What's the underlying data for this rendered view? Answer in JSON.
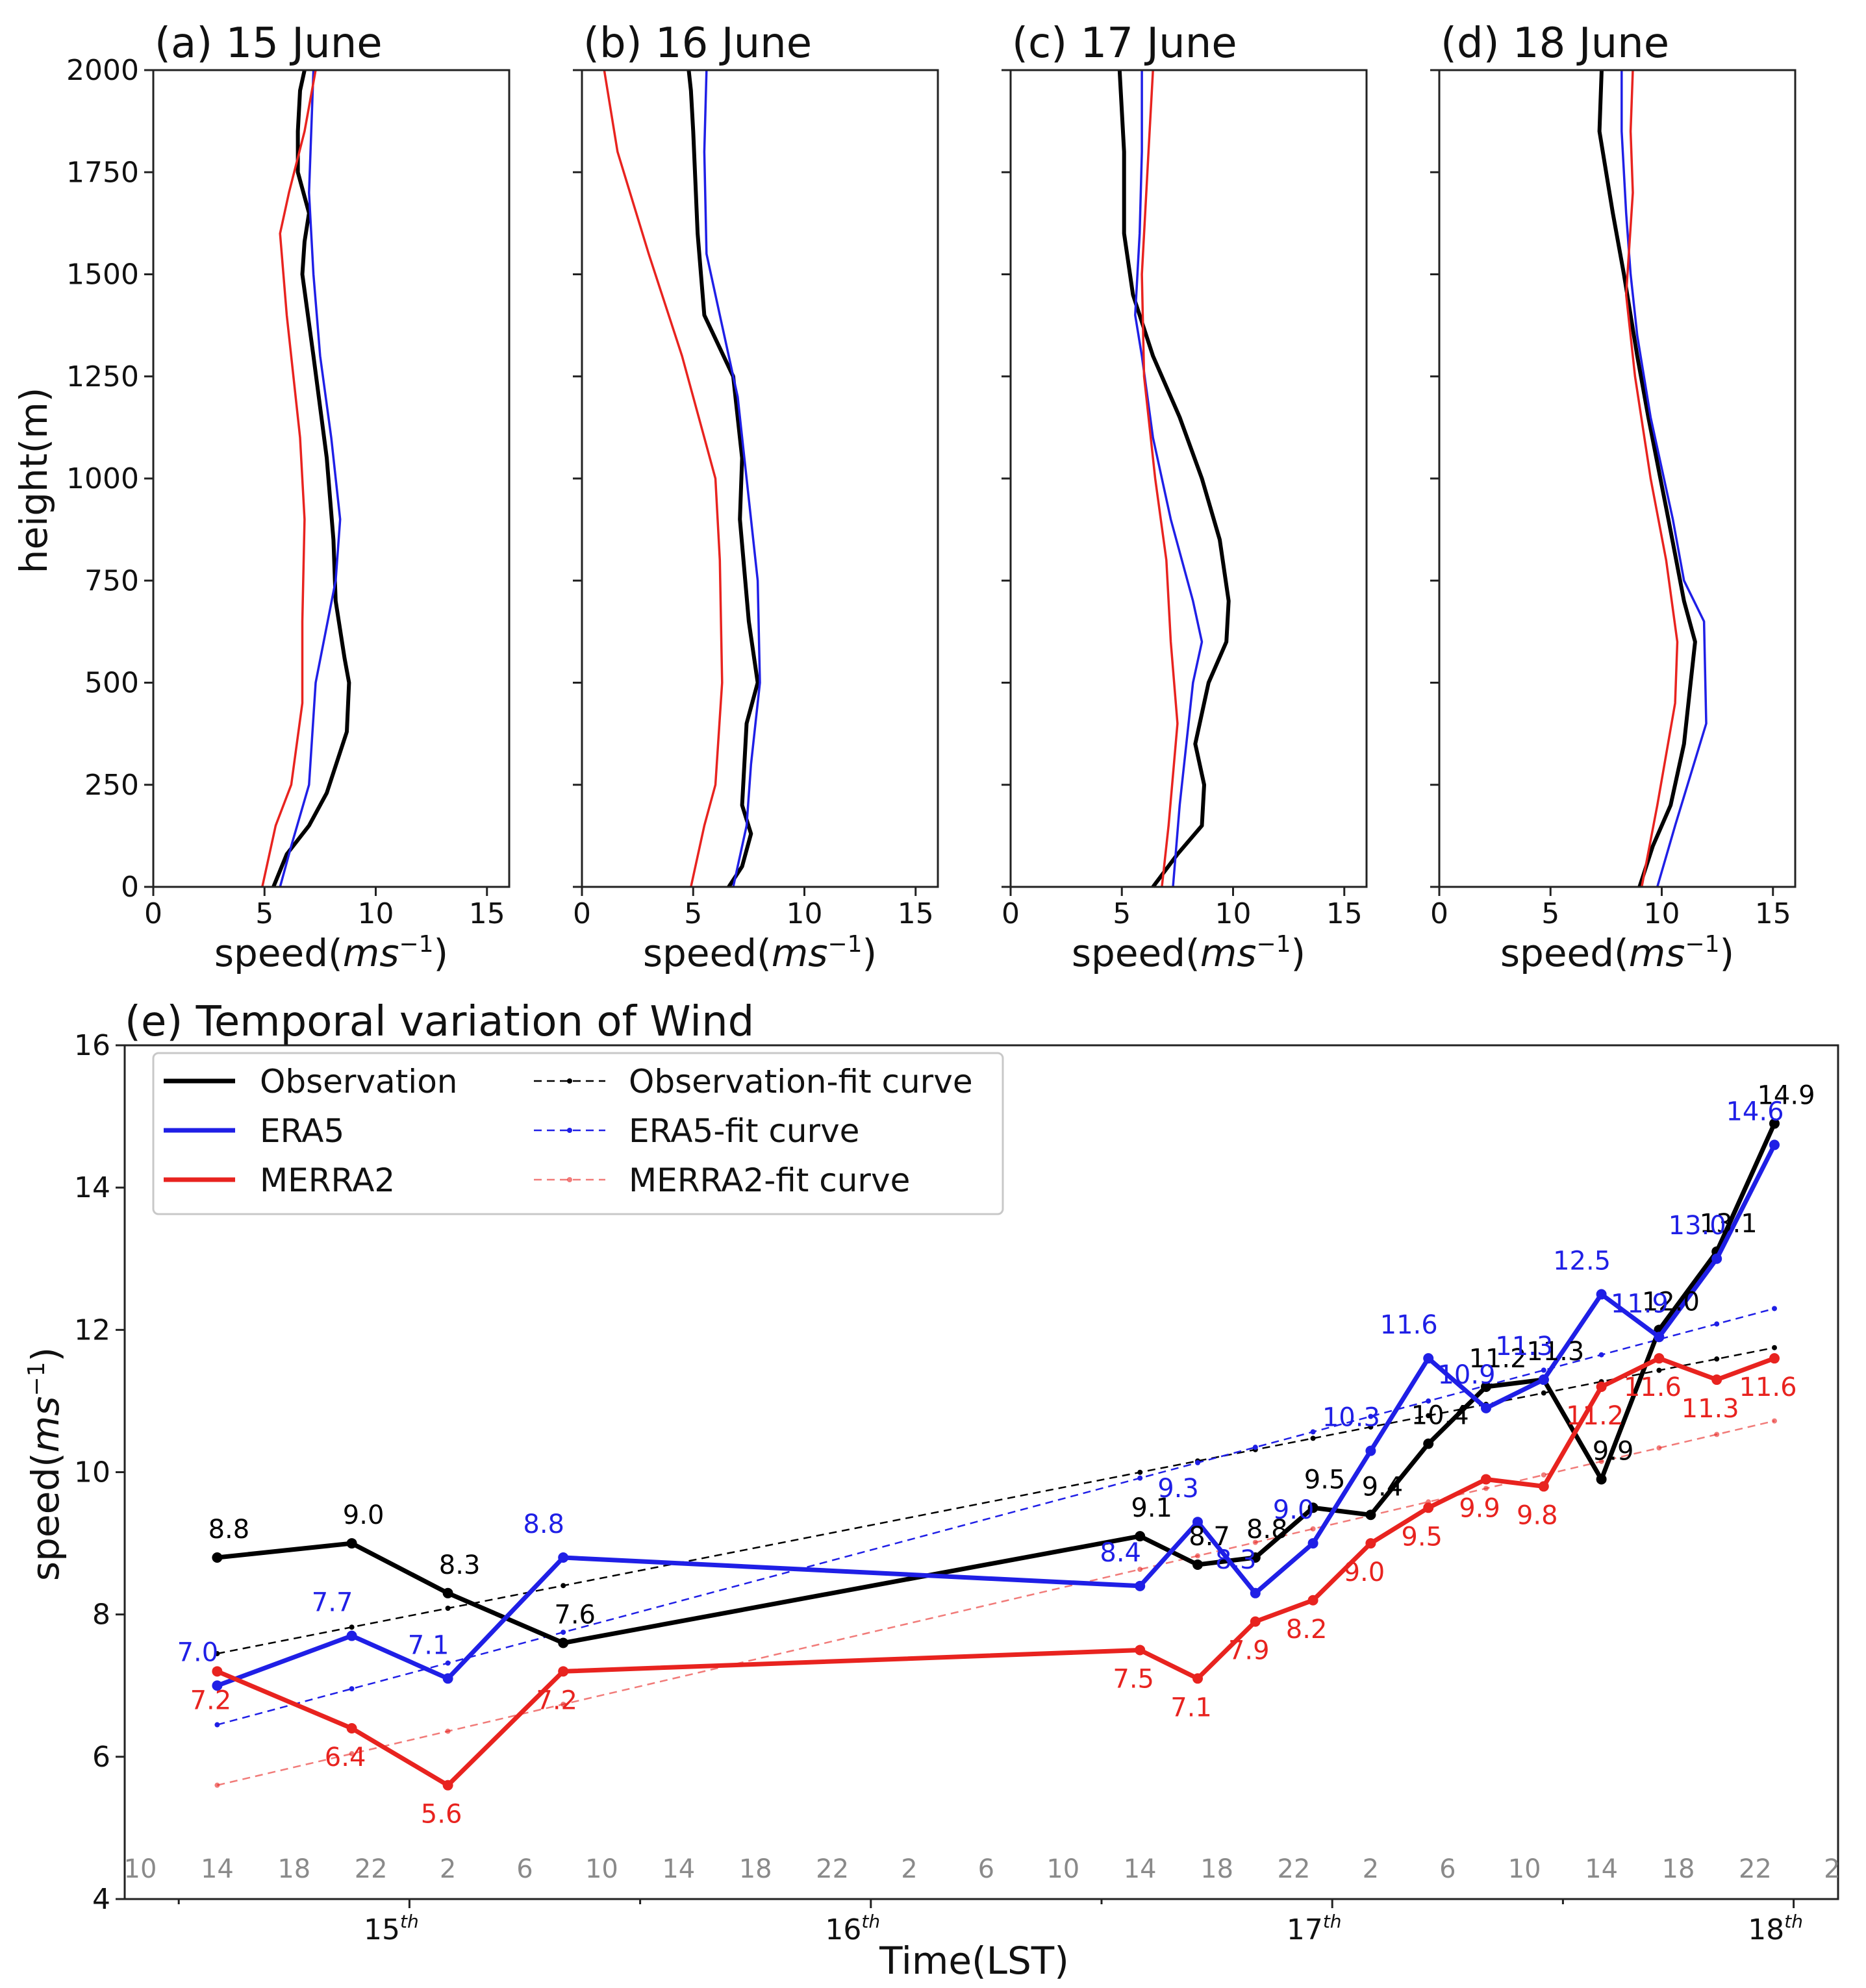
{
  "colors": {
    "observation": "#000000",
    "era5": "#1f1fe6",
    "merra2": "#e8231f"
  },
  "profile_common": {
    "ylabel": "height(m)",
    "xlabel_prefix": "speed(",
    "xlabel_unit": "ms",
    "xlabel_exp": "−1",
    "xlabel_suffix": ")",
    "xticks": [
      "0",
      "5",
      "10",
      "15"
    ],
    "yticks": [
      "0",
      "250",
      "500",
      "750",
      "1000",
      "1250",
      "1500",
      "1750",
      "2000"
    ]
  },
  "timeseries_text": {
    "title": "(e) Temporal variation of Wind",
    "ylabel_prefix": "speed(",
    "ylabel_unit": "ms",
    "ylabel_exp": "−1",
    "ylabel_suffix": ")",
    "xlabel": "Time(LST)",
    "yticks": [
      "4",
      "6",
      "8",
      "10",
      "12",
      "14",
      "16"
    ],
    "hour_ticks": [
      "10",
      "14",
      "18",
      "22",
      "2",
      "6",
      "10",
      "14",
      "18",
      "22",
      "2",
      "6",
      "10",
      "14",
      "18",
      "22",
      "2",
      "6",
      "10",
      "14",
      "18",
      "22",
      "2"
    ],
    "day_ticks": [
      {
        "base": "15",
        "sup": "th"
      },
      {
        "base": "16",
        "sup": "th"
      },
      {
        "base": "17",
        "sup": "th"
      },
      {
        "base": "18",
        "sup": "th"
      }
    ],
    "legend": {
      "observation": "Observation",
      "era5": "ERA5",
      "merra2": "MERRA2",
      "observation_fit": "Observation-fit curve",
      "era5_fit": "ERA5-fit curve",
      "merra2_fit": "MERRA2-fit curve"
    }
  },
  "chart_data": [
    {
      "type": "line",
      "title": "(a) 15 June",
      "xlabel": "speed(ms−1)",
      "ylabel": "height(m)",
      "xlim": [
        0,
        16
      ],
      "ylim": [
        0,
        2000
      ],
      "series": [
        {
          "name": "Observation",
          "points": [
            [
              5.4,
              0
            ],
            [
              6,
              80
            ],
            [
              7,
              150
            ],
            [
              7.8,
              230
            ],
            [
              8.7,
              380
            ],
            [
              8.8,
              500
            ],
            [
              8.6,
              560
            ],
            [
              8.2,
              700
            ],
            [
              8.1,
              850
            ],
            [
              7.8,
              1050
            ],
            [
              7.2,
              1300
            ],
            [
              6.7,
              1500
            ],
            [
              6.8,
              1580
            ],
            [
              7.0,
              1650
            ],
            [
              6.5,
              1750
            ],
            [
              6.5,
              1850
            ],
            [
              6.6,
              1950
            ],
            [
              6.8,
              2000
            ]
          ]
        },
        {
          "name": "ERA5",
          "points": [
            [
              5.7,
              0
            ],
            [
              6.2,
              100
            ],
            [
              7.0,
              250
            ],
            [
              7.3,
              500
            ],
            [
              8.2,
              750
            ],
            [
              8.4,
              900
            ],
            [
              8.0,
              1100
            ],
            [
              7.5,
              1300
            ],
            [
              7.2,
              1500
            ],
            [
              7.0,
              1700
            ],
            [
              7.1,
              1850
            ],
            [
              7.2,
              2000
            ]
          ]
        },
        {
          "name": "MERRA2",
          "points": [
            [
              4.9,
              0
            ],
            [
              5.5,
              150
            ],
            [
              6.2,
              250
            ],
            [
              6.7,
              450
            ],
            [
              6.7,
              650
            ],
            [
              6.8,
              900
            ],
            [
              6.6,
              1100
            ],
            [
              6.0,
              1400
            ],
            [
              5.7,
              1600
            ],
            [
              6.1,
              1700
            ],
            [
              6.8,
              1850
            ],
            [
              7.3,
              2000
            ]
          ]
        }
      ]
    },
    {
      "type": "line",
      "title": "(b) 16 June",
      "xlabel": "speed(ms−1)",
      "ylabel": "height(m)",
      "xlim": [
        0,
        16
      ],
      "ylim": [
        0,
        2000
      ],
      "series": [
        {
          "name": "Observation",
          "points": [
            [
              6.6,
              0
            ],
            [
              7.2,
              50
            ],
            [
              7.6,
              130
            ],
            [
              7.2,
              200
            ],
            [
              7.4,
              400
            ],
            [
              7.9,
              500
            ],
            [
              7.5,
              650
            ],
            [
              7.1,
              900
            ],
            [
              7.2,
              1050
            ],
            [
              6.8,
              1250
            ],
            [
              5.5,
              1400
            ],
            [
              5.2,
              1600
            ],
            [
              5.0,
              1850
            ],
            [
              4.9,
              1950
            ],
            [
              4.8,
              2000
            ]
          ]
        },
        {
          "name": "ERA5",
          "points": [
            [
              6.8,
              0
            ],
            [
              7.4,
              150
            ],
            [
              7.6,
              300
            ],
            [
              8.0,
              500
            ],
            [
              7.9,
              750
            ],
            [
              7.5,
              950
            ],
            [
              7.0,
              1200
            ],
            [
              6.2,
              1400
            ],
            [
              5.6,
              1550
            ],
            [
              5.5,
              1800
            ],
            [
              5.6,
              2000
            ]
          ]
        },
        {
          "name": "MERRA2",
          "points": [
            [
              4.9,
              0
            ],
            [
              5.5,
              150
            ],
            [
              6.0,
              250
            ],
            [
              6.3,
              500
            ],
            [
              6.2,
              800
            ],
            [
              6.0,
              1000
            ],
            [
              5.5,
              1100
            ],
            [
              4.5,
              1300
            ],
            [
              3.0,
              1550
            ],
            [
              1.6,
              1800
            ],
            [
              1.0,
              2000
            ]
          ]
        }
      ]
    },
    {
      "type": "line",
      "title": "(c) 17 June",
      "xlabel": "speed(ms−1)",
      "ylabel": "height(m)",
      "xlim": [
        0,
        16
      ],
      "ylim": [
        0,
        2000
      ],
      "series": [
        {
          "name": "Observation",
          "points": [
            [
              6.4,
              0
            ],
            [
              7.5,
              80
            ],
            [
              8.6,
              150
            ],
            [
              8.7,
              250
            ],
            [
              8.3,
              350
            ],
            [
              8.9,
              500
            ],
            [
              9.7,
              600
            ],
            [
              9.8,
              700
            ],
            [
              9.4,
              850
            ],
            [
              8.6,
              1000
            ],
            [
              7.6,
              1150
            ],
            [
              6.4,
              1300
            ],
            [
              5.5,
              1450
            ],
            [
              5.1,
              1600
            ],
            [
              5.1,
              1800
            ],
            [
              4.9,
              2000
            ]
          ]
        },
        {
          "name": "ERA5",
          "points": [
            [
              7.3,
              0
            ],
            [
              7.6,
              200
            ],
            [
              8.2,
              500
            ],
            [
              8.6,
              600
            ],
            [
              8.2,
              700
            ],
            [
              7.2,
              900
            ],
            [
              6.4,
              1100
            ],
            [
              5.9,
              1300
            ],
            [
              5.6,
              1400
            ],
            [
              5.8,
              1600
            ],
            [
              5.9,
              1800
            ],
            [
              5.9,
              2000
            ]
          ]
        },
        {
          "name": "MERRA2",
          "points": [
            [
              6.8,
              0
            ],
            [
              7.1,
              150
            ],
            [
              7.5,
              400
            ],
            [
              7.2,
              600
            ],
            [
              7.0,
              800
            ],
            [
              6.5,
              1000
            ],
            [
              6.0,
              1250
            ],
            [
              5.9,
              1500
            ],
            [
              6.2,
              1800
            ],
            [
              6.4,
              2000
            ]
          ]
        }
      ]
    },
    {
      "type": "line",
      "title": "(d) 18 June",
      "xlabel": "speed(ms−1)",
      "ylabel": "height(m)",
      "xlim": [
        0,
        16
      ],
      "ylim": [
        0,
        2000
      ],
      "series": [
        {
          "name": "Observation",
          "points": [
            [
              9.0,
              0
            ],
            [
              9.6,
              100
            ],
            [
              10.4,
              200
            ],
            [
              11.0,
              350
            ],
            [
              11.3,
              500
            ],
            [
              11.5,
              600
            ],
            [
              11.0,
              700
            ],
            [
              10.3,
              900
            ],
            [
              9.4,
              1150
            ],
            [
              8.9,
              1300
            ],
            [
              8.3,
              1500
            ],
            [
              7.8,
              1650
            ],
            [
              7.2,
              1850
            ],
            [
              7.3,
              2000
            ]
          ]
        },
        {
          "name": "ERA5",
          "points": [
            [
              9.8,
              0
            ],
            [
              10.6,
              150
            ],
            [
              12.0,
              400
            ],
            [
              11.9,
              650
            ],
            [
              11.0,
              750
            ],
            [
              10.5,
              900
            ],
            [
              9.5,
              1150
            ],
            [
              8.9,
              1350
            ],
            [
              8.6,
              1500
            ],
            [
              8.4,
              1650
            ],
            [
              8.2,
              1850
            ],
            [
              8.2,
              2000
            ]
          ]
        },
        {
          "name": "MERRA2",
          "points": [
            [
              9.1,
              0
            ],
            [
              9.8,
              200
            ],
            [
              10.6,
              450
            ],
            [
              10.7,
              600
            ],
            [
              10.2,
              800
            ],
            [
              9.5,
              1000
            ],
            [
              8.8,
              1250
            ],
            [
              8.4,
              1450
            ],
            [
              8.7,
              1700
            ],
            [
              8.6,
              1850
            ],
            [
              8.7,
              2000
            ]
          ]
        }
      ]
    },
    {
      "type": "line",
      "title": "(e) Temporal variation of Wind",
      "xlabel": "Time(LST)",
      "ylabel": "speed(ms−1)",
      "ylim": [
        4,
        16
      ],
      "grid": false,
      "legend_position": "top-left",
      "series": [
        {
          "name": "Observation",
          "x": [
            "15 14:00",
            "15 21:00",
            "16 02:00",
            "16 08:00",
            "17 14:00",
            "17 17:00",
            "17 20:00",
            "17 23:00",
            "18 02:00",
            "18 05:00",
            "18 08:00",
            "18 11:00",
            "18 14:00",
            "18 17:00",
            "18 20:00",
            "18 23:00"
          ],
          "values": [
            8.8,
            9.0,
            8.3,
            7.6,
            9.1,
            8.7,
            8.8,
            9.5,
            9.4,
            10.4,
            11.2,
            11.3,
            9.9,
            12.0,
            13.1,
            14.9
          ]
        },
        {
          "name": "ERA5",
          "x": [
            "15 14:00",
            "15 21:00",
            "16 02:00",
            "16 08:00",
            "17 14:00",
            "17 17:00",
            "17 20:00",
            "17 23:00",
            "18 02:00",
            "18 05:00",
            "18 08:00",
            "18 11:00",
            "18 14:00",
            "18 17:00",
            "18 20:00",
            "18 23:00"
          ],
          "values": [
            7.0,
            7.7,
            7.1,
            8.8,
            8.4,
            9.3,
            8.3,
            9.0,
            10.3,
            11.6,
            10.9,
            11.3,
            12.5,
            11.9,
            13.0,
            14.6
          ]
        },
        {
          "name": "MERRA2",
          "x": [
            "15 14:00",
            "15 21:00",
            "16 02:00",
            "16 08:00",
            "17 14:00",
            "17 17:00",
            "17 20:00",
            "17 23:00",
            "18 02:00",
            "18 05:00",
            "18 08:00",
            "18 11:00",
            "18 14:00",
            "18 17:00",
            "18 20:00",
            "18 23:00"
          ],
          "values": [
            7.2,
            6.4,
            5.6,
            7.2,
            7.5,
            7.1,
            7.9,
            8.2,
            9.0,
            9.5,
            9.9,
            9.8,
            11.2,
            11.6,
            11.3,
            11.6
          ]
        },
        {
          "name": "Observation-fit curve",
          "x": [
            "15 14:00",
            "18 23:00"
          ],
          "values": [
            7.45,
            11.75
          ]
        },
        {
          "name": "ERA5-fit curve",
          "x": [
            "15 14:00",
            "18 23:00"
          ],
          "values": [
            6.45,
            12.3
          ]
        },
        {
          "name": "MERRA2-fit curve",
          "x": [
            "15 14:00",
            "18 23:00"
          ],
          "values": [
            5.6,
            10.72
          ]
        }
      ],
      "data_labels": {
        "Observation": [
          "8.8",
          "9.0",
          "8.3",
          "7.6",
          "9.1",
          "8.7",
          "8.8",
          "9.5",
          "9.4",
          "10.4",
          "11.2",
          "11.3",
          "9.9",
          "12.0",
          "13.1",
          "14.9"
        ],
        "ERA5": [
          "7.0",
          "7.7",
          "7.1",
          "8.8",
          "8.4",
          "9.3",
          "8.3",
          "9.0",
          "10.3",
          "11.6",
          "10.9",
          "11.3",
          "12.5",
          "11.9",
          "13.0",
          "14.6"
        ],
        "MERRA2": [
          "7.2",
          "6.4",
          "5.6",
          "7.2",
          "7.5",
          "7.1",
          "7.9",
          "8.2",
          "9.0",
          "9.5",
          "9.9",
          "9.8",
          "11.2",
          "11.6",
          "11.3",
          "11.6"
        ]
      }
    }
  ]
}
